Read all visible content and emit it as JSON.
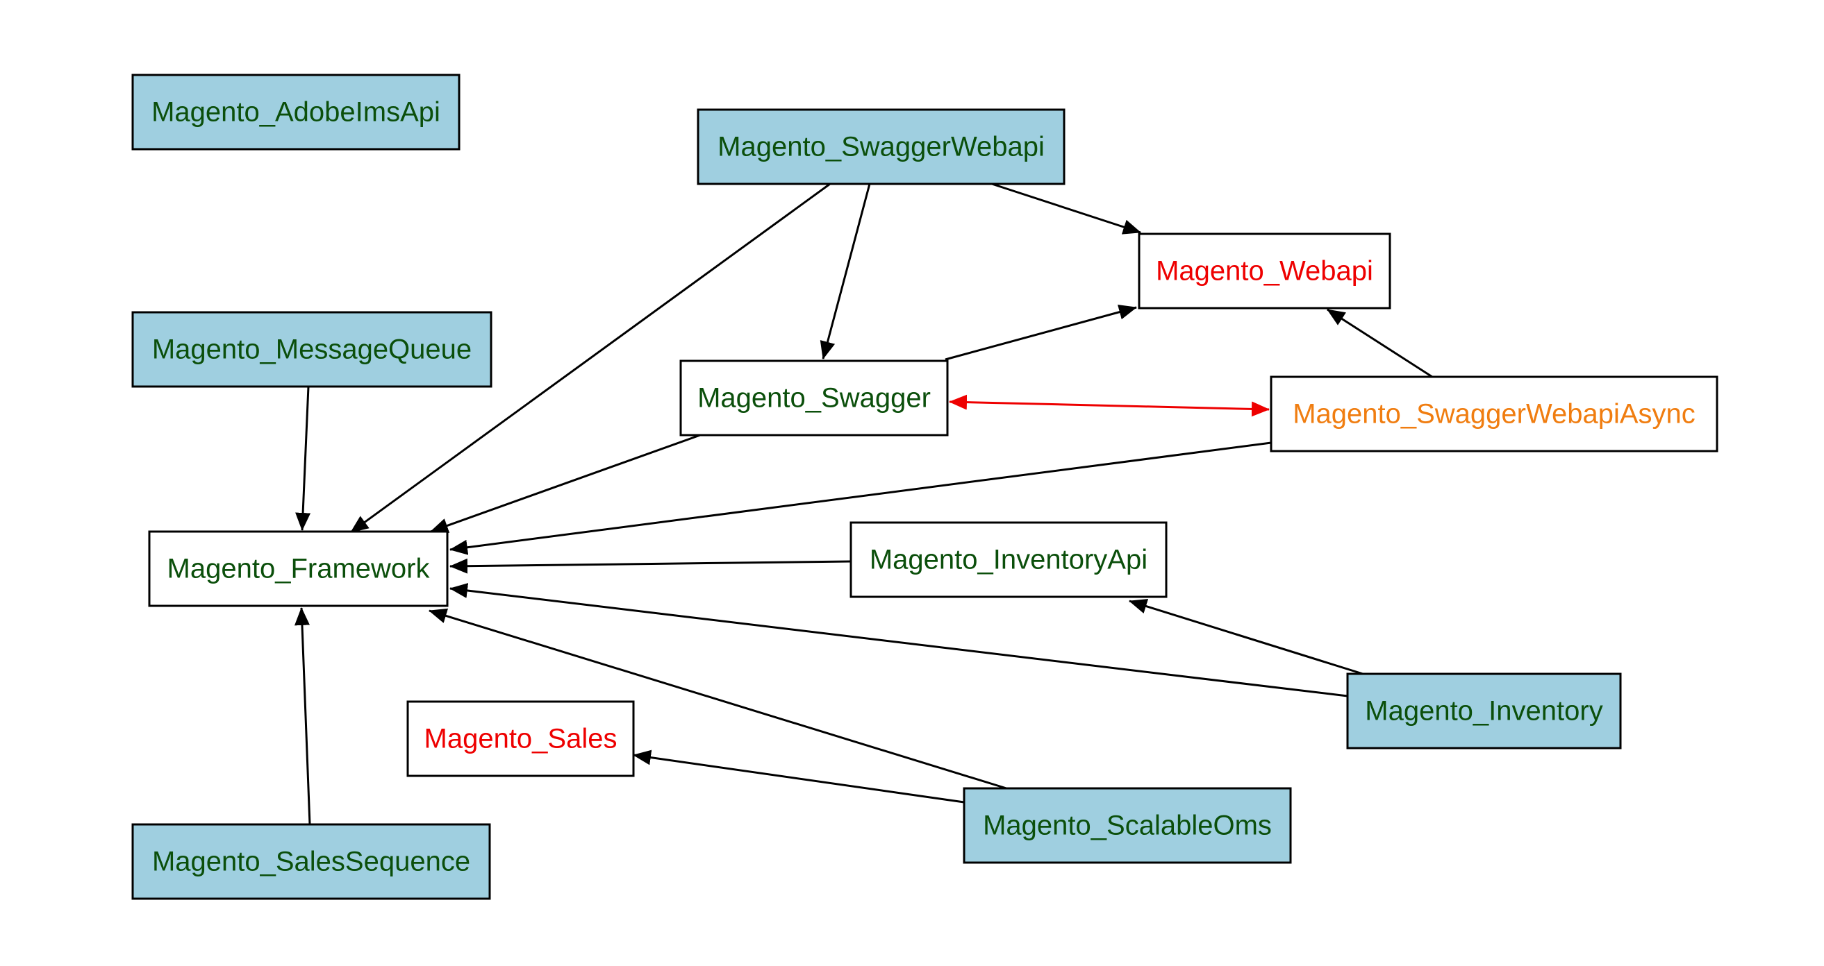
{
  "colors": {
    "background": "#ffffff",
    "fill_blue": "#9fcfe0",
    "fill_white": "#ffffff",
    "border": "#000000",
    "text_green": "#0b4f0b",
    "text_red": "#ee0000",
    "text_orange": "#f07d10",
    "edge_black": "#000000",
    "edge_red": "#ee0000"
  },
  "nodes": [
    {
      "id": "adobeimsapi",
      "label": "Magento_AdobeImsApi",
      "fill": "blue",
      "text": "green"
    },
    {
      "id": "swaggerwebapi",
      "label": "Magento_SwaggerWebapi",
      "fill": "blue",
      "text": "green"
    },
    {
      "id": "webapi",
      "label": "Magento_Webapi",
      "fill": "white",
      "text": "red"
    },
    {
      "id": "messagequeue",
      "label": "Magento_MessageQueue",
      "fill": "blue",
      "text": "green"
    },
    {
      "id": "swagger",
      "label": "Magento_Swagger",
      "fill": "white",
      "text": "green"
    },
    {
      "id": "swaggerwebapiasync",
      "label": "Magento_SwaggerWebapiAsync",
      "fill": "white",
      "text": "orange"
    },
    {
      "id": "framework",
      "label": "Magento_Framework",
      "fill": "white",
      "text": "green"
    },
    {
      "id": "inventoryapi",
      "label": "Magento_InventoryApi",
      "fill": "white",
      "text": "green"
    },
    {
      "id": "inventory",
      "label": "Magento_Inventory",
      "fill": "blue",
      "text": "green"
    },
    {
      "id": "sales",
      "label": "Magento_Sales",
      "fill": "white",
      "text": "red"
    },
    {
      "id": "scalableoms",
      "label": "Magento_ScalableOms",
      "fill": "blue",
      "text": "green"
    },
    {
      "id": "salessequence",
      "label": "Magento_SalesSequence",
      "fill": "blue",
      "text": "green"
    }
  ],
  "edges": [
    {
      "from": "swaggerwebapi",
      "to": "framework",
      "color": "black",
      "bidirectional": false
    },
    {
      "from": "swaggerwebapi",
      "to": "swagger",
      "color": "black",
      "bidirectional": false
    },
    {
      "from": "swaggerwebapi",
      "to": "webapi",
      "color": "black",
      "bidirectional": false
    },
    {
      "from": "swagger",
      "to": "webapi",
      "color": "black",
      "bidirectional": false
    },
    {
      "from": "swaggerwebapiasync",
      "to": "webapi",
      "color": "black",
      "bidirectional": false
    },
    {
      "from": "swagger",
      "to": "swaggerwebapiasync",
      "color": "red",
      "bidirectional": true
    },
    {
      "from": "messagequeue",
      "to": "framework",
      "color": "black",
      "bidirectional": false
    },
    {
      "from": "swagger",
      "to": "framework",
      "color": "black",
      "bidirectional": false
    },
    {
      "from": "swaggerwebapiasync",
      "to": "framework",
      "color": "black",
      "bidirectional": false
    },
    {
      "from": "inventoryapi",
      "to": "framework",
      "color": "black",
      "bidirectional": false
    },
    {
      "from": "inventory",
      "to": "framework",
      "color": "black",
      "bidirectional": false
    },
    {
      "from": "inventory",
      "to": "inventoryapi",
      "color": "black",
      "bidirectional": false
    },
    {
      "from": "scalableoms",
      "to": "framework",
      "color": "black",
      "bidirectional": false
    },
    {
      "from": "scalableoms",
      "to": "sales",
      "color": "black",
      "bidirectional": false
    },
    {
      "from": "salessequence",
      "to": "framework",
      "color": "black",
      "bidirectional": false
    }
  ]
}
